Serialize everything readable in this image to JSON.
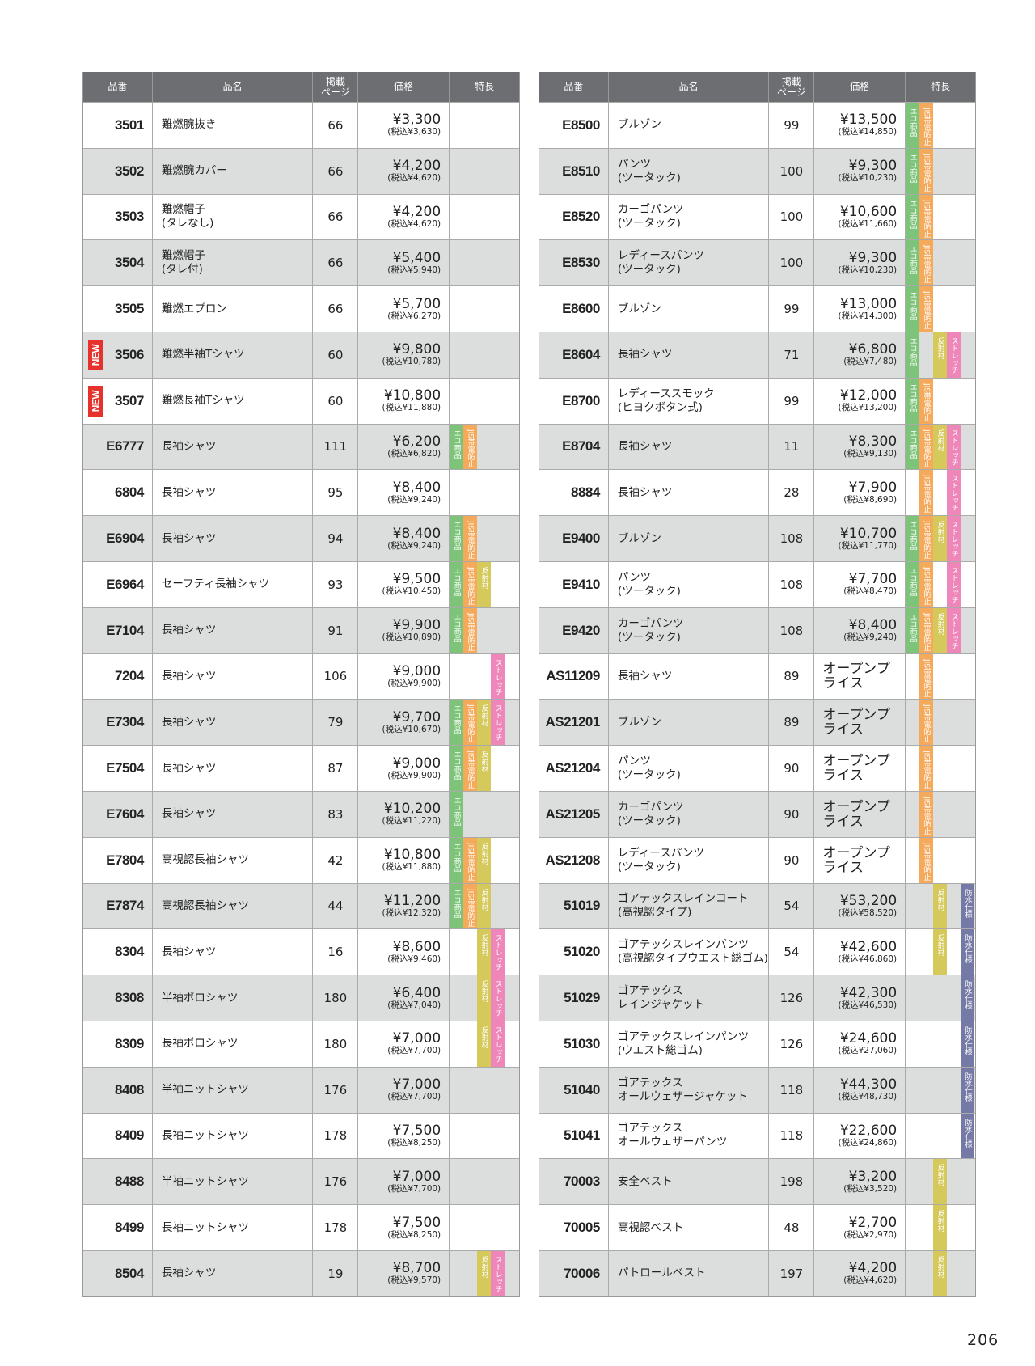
{
  "header": {
    "no": "品番",
    "name": "品名",
    "page": "掲載\nページ",
    "price": "価格",
    "features": "特長"
  },
  "features": {
    "eco": {
      "label": "エコ商品",
      "color": "#7dc47a",
      "slot": 0
    },
    "jis": {
      "label": "JIS帯電防止",
      "color": "#f5a95b",
      "slot": 1
    },
    "ref": {
      "label": "反射材",
      "color": "#d4c95a",
      "slot": 2
    },
    "str": {
      "label": "ストレッチ",
      "color": "#ee86b9",
      "slot": 3
    },
    "wp": {
      "label": "防水仕様",
      "color": "#7579a6",
      "slot": 4
    }
  },
  "new_badge": {
    "label": "NEW",
    "color": "#e5322d"
  },
  "header_color": "#6d6e71",
  "left": [
    [
      "3501",
      "難燃腕抜き",
      "66",
      "¥3,300",
      "(税込¥3,630)",
      [],
      false
    ],
    [
      "3502",
      "難燃腕カバー",
      "66",
      "¥4,200",
      "(税込¥4,620)",
      [],
      false
    ],
    [
      "3503",
      "難燃帽子\n(タレなし)",
      "66",
      "¥4,200",
      "(税込¥4,620)",
      [],
      false
    ],
    [
      "3504",
      "難燃帽子\n(タレ付)",
      "66",
      "¥5,400",
      "(税込¥5,940)",
      [],
      false
    ],
    [
      "3505",
      "難燃エプロン",
      "66",
      "¥5,700",
      "(税込¥6,270)",
      [],
      false
    ],
    [
      "3506",
      "難燃半袖Tシャツ",
      "60",
      "¥9,800",
      "(税込¥10,780)",
      [],
      true
    ],
    [
      "3507",
      "難燃長袖Tシャツ",
      "60",
      "¥10,800",
      "(税込¥11,880)",
      [],
      true
    ],
    [
      "E6777",
      "長袖シャツ",
      "111",
      "¥6,200",
      "(税込¥6,820)",
      [
        "eco",
        "jis"
      ],
      false
    ],
    [
      "6804",
      "長袖シャツ",
      "95",
      "¥8,400",
      "(税込¥9,240)",
      [],
      false
    ],
    [
      "E6904",
      "長袖シャツ",
      "94",
      "¥8,400",
      "(税込¥9,240)",
      [
        "eco",
        "jis"
      ],
      false
    ],
    [
      "E6964",
      "セーフティ長袖シャツ",
      "93",
      "¥9,500",
      "(税込¥10,450)",
      [
        "eco",
        "jis",
        "ref"
      ],
      false
    ],
    [
      "E7104",
      "長袖シャツ",
      "91",
      "¥9,900",
      "(税込¥10,890)",
      [
        "eco",
        "jis"
      ],
      false
    ],
    [
      "7204",
      "長袖シャツ",
      "106",
      "¥9,000",
      "(税込¥9,900)",
      [
        "str"
      ],
      false
    ],
    [
      "E7304",
      "長袖シャツ",
      "79",
      "¥9,700",
      "(税込¥10,670)",
      [
        "eco",
        "jis",
        "ref",
        "str"
      ],
      false
    ],
    [
      "E7504",
      "長袖シャツ",
      "87",
      "¥9,000",
      "(税込¥9,900)",
      [
        "eco",
        "jis",
        "ref"
      ],
      false
    ],
    [
      "E7604",
      "長袖シャツ",
      "83",
      "¥10,200",
      "(税込¥11,220)",
      [
        "eco"
      ],
      false
    ],
    [
      "E7804",
      "高視認長袖シャツ",
      "42",
      "¥10,800",
      "(税込¥11,880)",
      [
        "eco",
        "jis",
        "ref"
      ],
      false
    ],
    [
      "E7874",
      "高視認長袖シャツ",
      "44",
      "¥11,200",
      "(税込¥12,320)",
      [
        "eco",
        "jis",
        "ref"
      ],
      false
    ],
    [
      "8304",
      "長袖シャツ",
      "16",
      "¥8,600",
      "(税込¥9,460)",
      [
        "ref",
        "str"
      ],
      false
    ],
    [
      "8308",
      "半袖ポロシャツ",
      "180",
      "¥6,400",
      "(税込¥7,040)",
      [
        "ref",
        "str"
      ],
      false
    ],
    [
      "8309",
      "長袖ポロシャツ",
      "180",
      "¥7,000",
      "(税込¥7,700)",
      [
        "ref",
        "str"
      ],
      false
    ],
    [
      "8408",
      "半袖ニットシャツ",
      "176",
      "¥7,000",
      "(税込¥7,700)",
      [],
      false
    ],
    [
      "8409",
      "長袖ニットシャツ",
      "178",
      "¥7,500",
      "(税込¥8,250)",
      [],
      false
    ],
    [
      "8488",
      "半袖ニットシャツ",
      "176",
      "¥7,000",
      "(税込¥7,700)",
      [],
      false
    ],
    [
      "8499",
      "長袖ニットシャツ",
      "178",
      "¥7,500",
      "(税込¥8,250)",
      [],
      false
    ],
    [
      "8504",
      "長袖シャツ",
      "19",
      "¥8,700",
      "(税込¥9,570)",
      [
        "ref",
        "str"
      ],
      false
    ]
  ],
  "right": [
    [
      "E8500",
      "ブルゾン",
      "99",
      "¥13,500",
      "(税込¥14,850)",
      [
        "eco",
        "jis"
      ],
      false
    ],
    [
      "E8510",
      "パンツ\n(ツータック)",
      "100",
      "¥9,300",
      "(税込¥10,230)",
      [
        "eco",
        "jis"
      ],
      false
    ],
    [
      "E8520",
      "カーゴパンツ\n(ツータック)",
      "100",
      "¥10,600",
      "(税込¥11,660)",
      [
        "eco",
        "jis"
      ],
      false
    ],
    [
      "E8530",
      "レディースパンツ\n(ツータック)",
      "100",
      "¥9,300",
      "(税込¥10,230)",
      [
        "eco",
        "jis"
      ],
      false
    ],
    [
      "E8600",
      "ブルゾン",
      "99",
      "¥13,000",
      "(税込¥14,300)",
      [
        "eco",
        "jis"
      ],
      false
    ],
    [
      "E8604",
      "長袖シャツ",
      "71",
      "¥6,800",
      "(税込¥7,480)",
      [
        "eco",
        "ref",
        "str"
      ],
      false
    ],
    [
      "E8700",
      "レディーススモック\n(ヒヨクボタン式)",
      "99",
      "¥12,000",
      "(税込¥13,200)",
      [
        "eco",
        "jis"
      ],
      false
    ],
    [
      "E8704",
      "長袖シャツ",
      "11",
      "¥8,300",
      "(税込¥9,130)",
      [
        "eco",
        "jis",
        "ref",
        "str"
      ],
      false
    ],
    [
      "8884",
      "長袖シャツ",
      "28",
      "¥7,900",
      "(税込¥8,690)",
      [
        "jis",
        "str"
      ],
      false
    ],
    [
      "E9400",
      "ブルゾン",
      "108",
      "¥10,700",
      "(税込¥11,770)",
      [
        "eco",
        "jis",
        "ref",
        "str"
      ],
      false
    ],
    [
      "E9410",
      "パンツ\n(ツータック)",
      "108",
      "¥7,700",
      "(税込¥8,470)",
      [
        "eco",
        "jis",
        "str"
      ],
      false
    ],
    [
      "E9420",
      "カーゴパンツ\n(ツータック)",
      "108",
      "¥8,400",
      "(税込¥9,240)",
      [
        "eco",
        "jis",
        "ref",
        "str"
      ],
      false
    ],
    [
      "AS11209",
      "長袖シャツ",
      "89",
      "オープンプライス",
      "",
      [
        "jis"
      ],
      false
    ],
    [
      "AS21201",
      "ブルゾン",
      "89",
      "オープンプライス",
      "",
      [
        "jis"
      ],
      false
    ],
    [
      "AS21204",
      "パンツ\n(ツータック)",
      "90",
      "オープンプライス",
      "",
      [
        "jis"
      ],
      false
    ],
    [
      "AS21205",
      "カーゴパンツ\n(ツータック)",
      "90",
      "オープンプライス",
      "",
      [
        "jis"
      ],
      false
    ],
    [
      "AS21208",
      "レディースパンツ\n(ツータック)",
      "90",
      "オープンプライス",
      "",
      [
        "jis"
      ],
      false
    ],
    [
      "51019",
      "ゴアテックスレインコート\n(高視認タイプ)",
      "54",
      "¥53,200",
      "(税込¥58,520)",
      [
        "ref",
        "wp"
      ],
      false
    ],
    [
      "51020",
      "ゴアテックスレインパンツ\n(高視認タイプウエスト総ゴム)",
      "54",
      "¥42,600",
      "(税込¥46,860)",
      [
        "ref",
        "wp"
      ],
      false
    ],
    [
      "51029",
      "ゴアテックス\nレインジャケット",
      "126",
      "¥42,300",
      "(税込¥46,530)",
      [
        "wp"
      ],
      false
    ],
    [
      "51030",
      "ゴアテックスレインパンツ\n(ウエスト総ゴム)",
      "126",
      "¥24,600",
      "(税込¥27,060)",
      [
        "wp"
      ],
      false
    ],
    [
      "51040",
      "ゴアテックス\nオールウェザージャケット",
      "118",
      "¥44,300",
      "(税込¥48,730)",
      [
        "wp"
      ],
      false
    ],
    [
      "51041",
      "ゴアテックス\nオールウェザーパンツ",
      "118",
      "¥22,600",
      "(税込¥24,860)",
      [
        "wp"
      ],
      false
    ],
    [
      "70003",
      "安全ベスト",
      "198",
      "¥3,200",
      "(税込¥3,520)",
      [
        "ref"
      ],
      false
    ],
    [
      "70005",
      "高視認ベスト",
      "48",
      "¥2,700",
      "(税込¥2,970)",
      [
        "ref"
      ],
      false
    ],
    [
      "70006",
      "パトロールベスト",
      "197",
      "¥4,200",
      "(税込¥4,620)",
      [
        "ref"
      ],
      false
    ]
  ],
  "page_number": "206"
}
